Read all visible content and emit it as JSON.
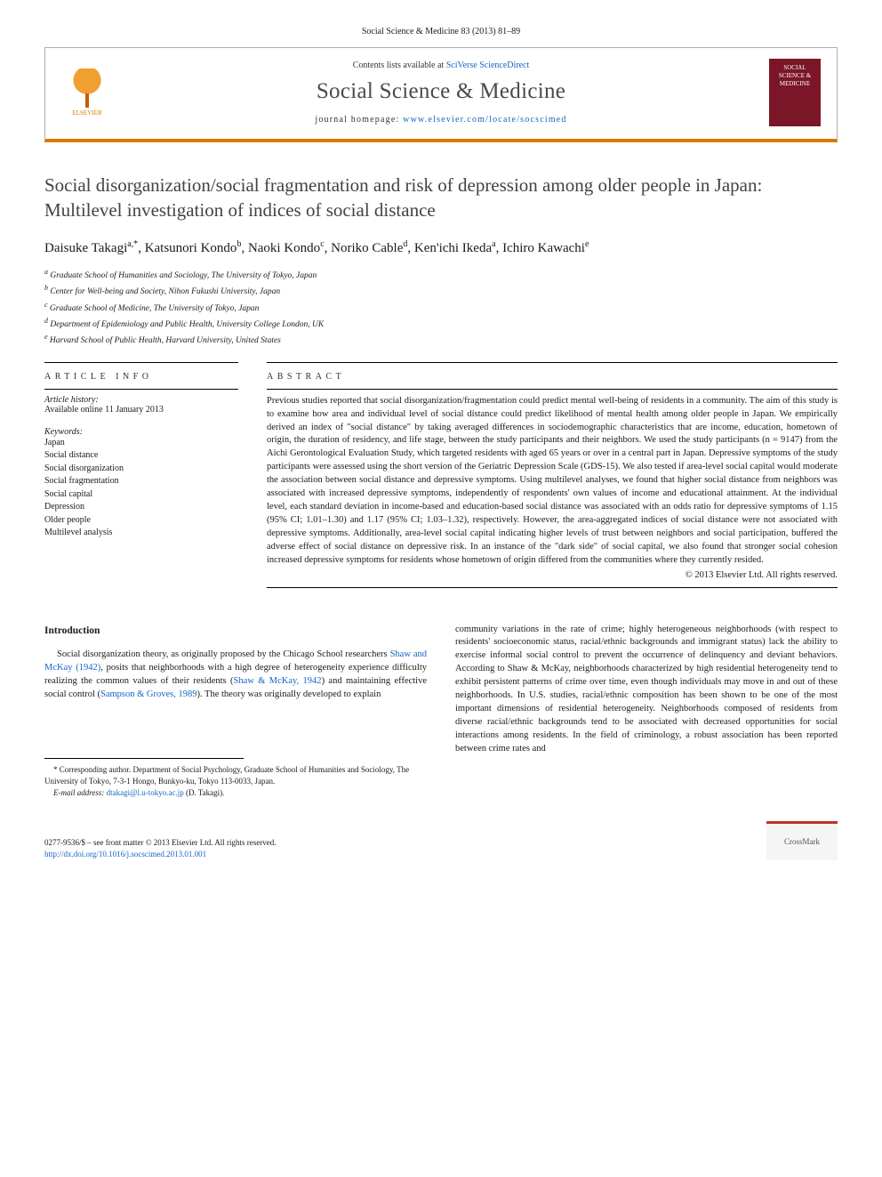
{
  "citation": "Social Science & Medicine 83 (2013) 81–89",
  "header": {
    "contents_prefix": "Contents lists available at ",
    "contents_link": "SciVerse ScienceDirect",
    "journal_name": "Social Science & Medicine",
    "homepage_prefix": "journal homepage: ",
    "homepage_url": "www.elsevier.com/locate/socscimed",
    "publisher_name": "ELSEVIER",
    "cover_text": "SOCIAL SCIENCE & MEDICINE"
  },
  "title": "Social disorganization/social fragmentation and risk of depression among older people in Japan: Multilevel investigation of indices of social distance",
  "authors_html": "Daisuke Takagi<sup>a,*</sup>, Katsunori Kondo<sup>b</sup>, Naoki Kondo<sup>c</sup>, Noriko Cable<sup>d</sup>, Ken'ichi Ikeda<sup>a</sup>, Ichiro Kawachi<sup>e</sup>",
  "affiliations": [
    "a Graduate School of Humanities and Sociology, The University of Tokyo, Japan",
    "b Center for Well-being and Society, Nihon Fukushi University, Japan",
    "c Graduate School of Medicine, The University of Tokyo, Japan",
    "d Department of Epidemiology and Public Health, University College London, UK",
    "e Harvard School of Public Health, Harvard University, United States"
  ],
  "article_info": {
    "head": "ARTICLE INFO",
    "history_label": "Article history:",
    "history_value": "Available online 11 January 2013",
    "keywords_label": "Keywords:",
    "keywords": [
      "Japan",
      "Social distance",
      "Social disorganization",
      "Social fragmentation",
      "Social capital",
      "Depression",
      "Older people",
      "Multilevel analysis"
    ]
  },
  "abstract": {
    "head": "ABSTRACT",
    "text": "Previous studies reported that social disorganization/fragmentation could predict mental well-being of residents in a community. The aim of this study is to examine how area and individual level of social distance could predict likelihood of mental health among older people in Japan. We empirically derived an index of \"social distance\" by taking averaged differences in sociodemographic characteristics that are income, education, hometown of origin, the duration of residency, and life stage, between the study participants and their neighbors. We used the study participants (n = 9147) from the Aichi Gerontological Evaluation Study, which targeted residents with aged 65 years or over in a central part in Japan. Depressive symptoms of the study participants were assessed using the short version of the Geriatric Depression Scale (GDS-15). We also tested if area-level social capital would moderate the association between social distance and depressive symptoms. Using multilevel analyses, we found that higher social distance from neighbors was associated with increased depressive symptoms, independently of respondents' own values of income and educational attainment. At the individual level, each standard deviation in income-based and education-based social distance was associated with an odds ratio for depressive symptoms of 1.15 (95% CI; 1.01–1.30) and 1.17 (95% CI; 1.03–1.32), respectively. However, the area-aggregated indices of social distance were not associated with depressive symptoms. Additionally, area-level social capital indicating higher levels of trust between neighbors and social participation, buffered the adverse effect of social distance on depressive risk. In an instance of the \"dark side\" of social capital, we also found that stronger social cohesion increased depressive symptoms for residents whose hometown of origin differed from the communities where they currently resided.",
    "copyright": "© 2013 Elsevier Ltd. All rights reserved."
  },
  "body": {
    "intro_head": "Introduction",
    "left_para": "Social disorganization theory, as originally proposed by the Chicago School researchers Shaw and McKay (1942), posits that neighborhoods with a high degree of heterogeneity experience difficulty realizing the common values of their residents (Shaw & McKay, 1942) and maintaining effective social control (Sampson & Groves, 1989). The theory was originally developed to explain",
    "right_para": "community variations in the rate of crime; highly heterogeneous neighborhoods (with respect to residents' socioeconomic status, racial/ethnic backgrounds and immigrant status) lack the ability to exercise informal social control to prevent the occurrence of delinquency and deviant behaviors. According to Shaw & McKay, neighborhoods characterized by high residential heterogeneity tend to exhibit persistent patterns of crime over time, even though individuals may move in and out of these neighborhoods. In U.S. studies, racial/ethnic composition has been shown to be one of the most important dimensions of residential heterogeneity. Neighborhoods composed of residents from diverse racial/ethnic backgrounds tend to be associated with decreased opportunities for social interactions among residents. In the field of criminology, a robust association has been reported between crime rates and"
  },
  "footnote": {
    "corr": "* Corresponding author. Department of Social Psychology, Graduate School of Humanities and Sociology, The University of Tokyo, 7-3-1 Hongo, Bunkyo-ku, Tokyo 113-0033, Japan.",
    "email_label": "E-mail address: ",
    "email": "dtakagi@l.u-tokyo.ac.jp",
    "email_suffix": " (D. Takagi)."
  },
  "bottom": {
    "issn_line": "0277-9536/$ – see front matter © 2013 Elsevier Ltd. All rights reserved.",
    "doi_url": "http://dx.doi.org/10.1016/j.socscimed.2013.01.001",
    "crossmark": "CrossMark"
  },
  "colors": {
    "accent_orange": "#e07800",
    "link_blue": "#1565c0",
    "cover_red": "#7a1626",
    "crossmark_red": "#c0332b"
  }
}
